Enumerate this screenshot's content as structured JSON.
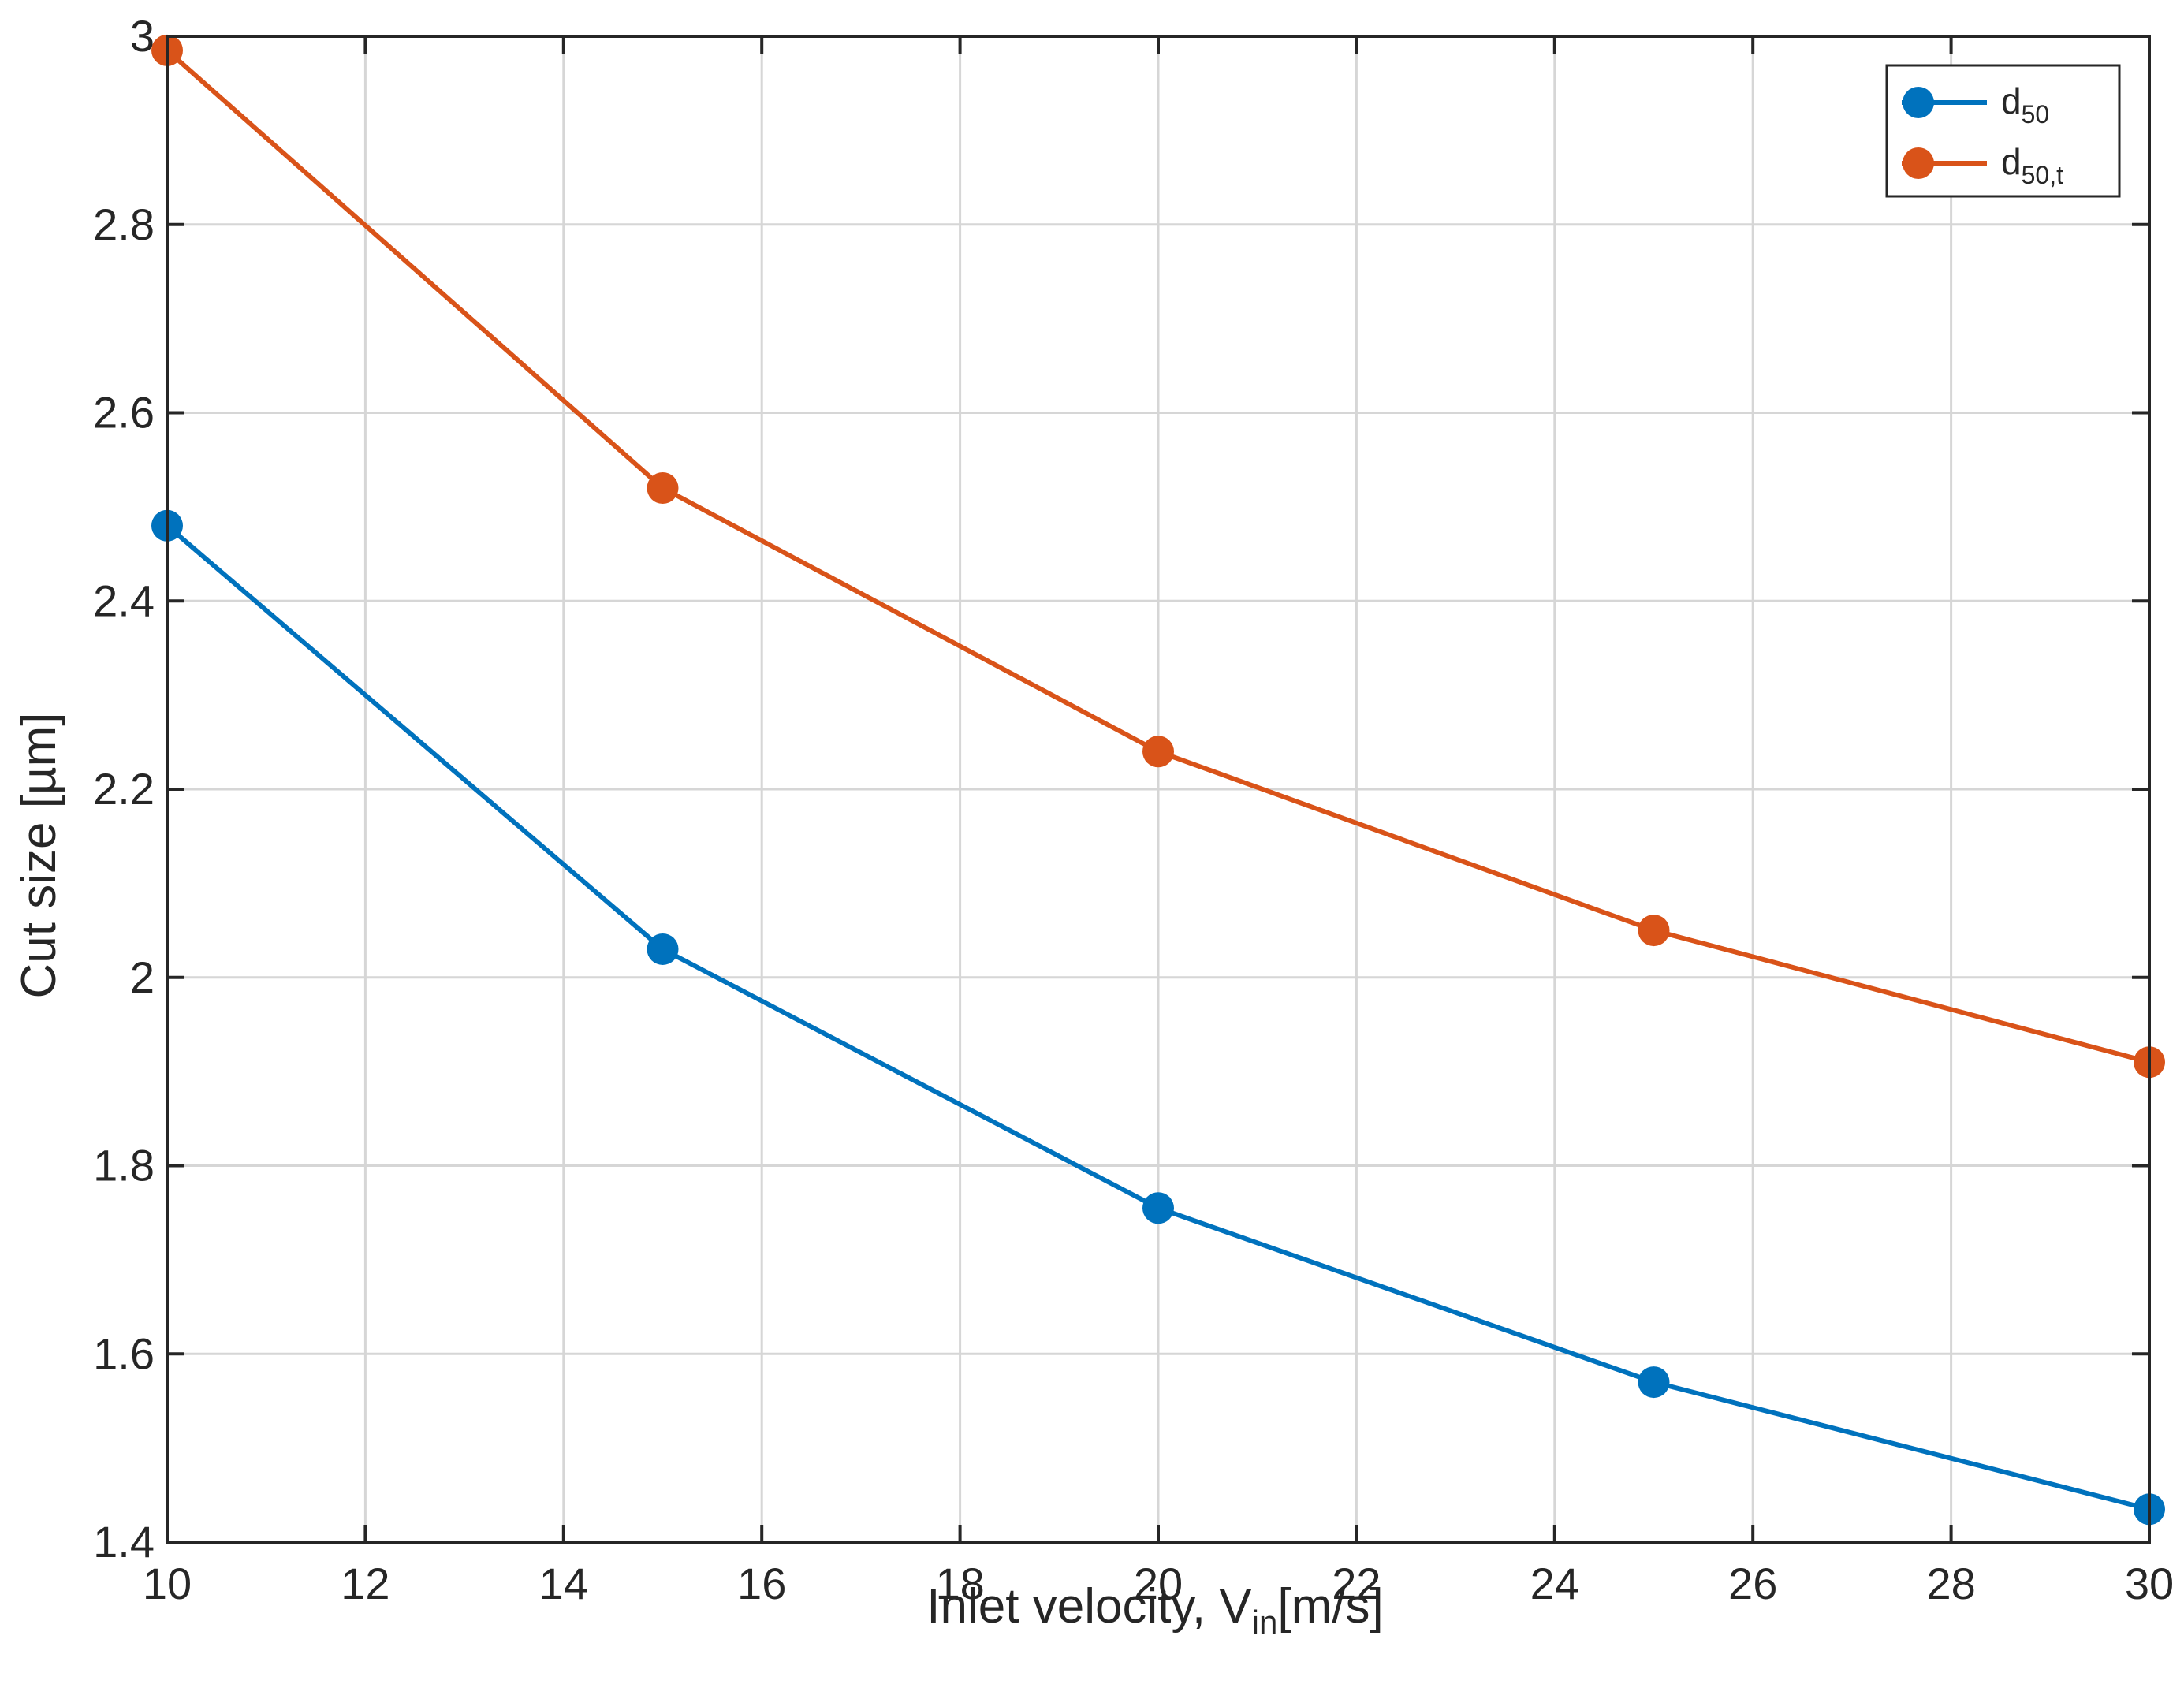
{
  "chart_data": {
    "type": "line",
    "xlabel": {
      "main": "Inlet  velocity,  V",
      "sub": "in",
      "unit": "[m/s]"
    },
    "ylabel": "Cut size [µm]",
    "xlim": [
      10,
      30
    ],
    "ylim": [
      1.4,
      3.0
    ],
    "xticks": [
      10,
      12,
      14,
      16,
      18,
      20,
      22,
      24,
      26,
      28,
      30
    ],
    "xtick_labels": [
      "10",
      "12",
      "14",
      "16",
      "18",
      "20",
      "22",
      "24",
      "26",
      "28",
      "30"
    ],
    "yticks": [
      1.4,
      1.6,
      1.8,
      2.0,
      2.2,
      2.4,
      2.6,
      2.8,
      3.0
    ],
    "ytick_labels": [
      "1.4",
      "1.6",
      "1.8",
      "2",
      "2.2",
      "2.4",
      "2.6",
      "2.8",
      "3"
    ],
    "grid": true,
    "legend_position": "top-right",
    "x": [
      10,
      15,
      20,
      25,
      30
    ],
    "series": [
      {
        "name": "d",
        "name_sub": "50",
        "color": "#0072BD",
        "marker": "circle",
        "values": [
          2.48,
          2.03,
          1.755,
          1.57,
          1.435
        ]
      },
      {
        "name": "d",
        "name_sub": "50,t",
        "color": "#D95319",
        "marker": "circle",
        "values": [
          2.985,
          2.52,
          2.24,
          2.05,
          1.91
        ]
      }
    ]
  }
}
